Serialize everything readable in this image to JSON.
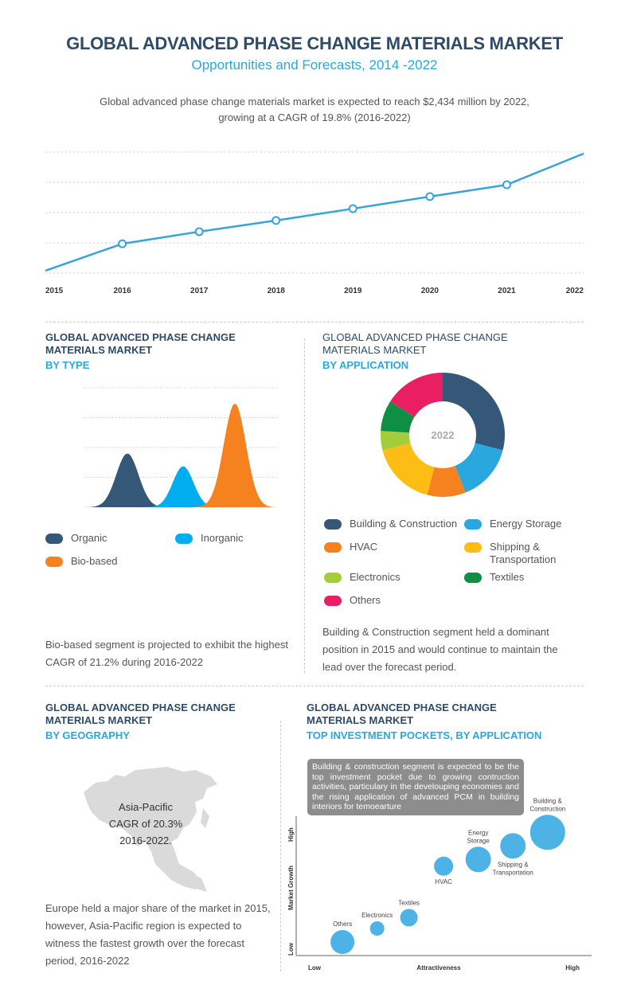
{
  "header": {
    "title": "GLOBAL ADVANCED PHASE CHANGE MATERIALS MARKET",
    "subtitle": "Opportunities and Forecasts, 2014 -2022",
    "intro_line1": "Global advanced phase change materials market is expected to reach $2,434 million by 2022,",
    "intro_line2": "growing at a CAGR of 19.8% (2016-2022)"
  },
  "colors": {
    "navy": "#2f4b68",
    "accent": "#2aa7dd",
    "line": "#36a3dc",
    "bubble": "#4db3e6"
  },
  "chart_data": [
    {
      "type": "line",
      "title": "",
      "xlabel": "",
      "ylabel": "",
      "categories": [
        "2015",
        "2016",
        "2017",
        "2018",
        "2019",
        "2020",
        "2021",
        "2022"
      ],
      "values": [
        0.08,
        0.97,
        1.37,
        1.74,
        2.13,
        2.53,
        2.92,
        3.95
      ],
      "markers": [
        false,
        true,
        true,
        true,
        true,
        true,
        true,
        false
      ],
      "ylim": [
        0,
        4
      ],
      "grid": "horizontal dotted",
      "color": "#36a3dc"
    },
    {
      "type": "area",
      "title_line1": "GLOBAL ADVANCED PHASE CHANGE",
      "title_line2": "MATERIALS MARKET",
      "subtitle": "BY TYPE",
      "series": [
        {
          "name": "Organic",
          "peak": 1.8,
          "color": "#355878"
        },
        {
          "name": "Inorganic",
          "peak": 1.37,
          "color": "#00aeef"
        },
        {
          "name": "Bio-based",
          "peak": 3.47,
          "color": "#f5821f"
        }
      ],
      "ylim": [
        0,
        4
      ],
      "grid": "horizontal dotted",
      "legend": "bottom",
      "note": "Bio-based segment is projected to exhibit the highest CAGR of 21.2% during 2016-2022"
    },
    {
      "type": "pie",
      "title_line1": "GLOBAL ADVANCED PHASE CHANGE",
      "title_line2": "MATERIALS MARKET",
      "subtitle": "BY APPLICATION",
      "center_label": "2022",
      "slices": [
        {
          "name": "Building & Construction",
          "value": 29,
          "color": "#355878"
        },
        {
          "name": "Energy Storage",
          "value": 15,
          "color": "#29a8e0"
        },
        {
          "name": "HVAC",
          "value": 10,
          "color": "#f5821f"
        },
        {
          "name": "Shipping & Transportation",
          "value": 17,
          "color": "#fdbd14"
        },
        {
          "name": "Electronics",
          "value": 5,
          "color": "#a3cd3a"
        },
        {
          "name": "Textiles",
          "value": 8,
          "color": "#0f8f43"
        },
        {
          "name": "Others",
          "value": 16,
          "color": "#e91e63"
        }
      ],
      "legend": "bottom",
      "note": "Building & Construction segment held a dominant position in 2015 and would continue to maintain the lead over the forecast period."
    },
    {
      "type": "scatter",
      "title_line1": "GLOBAL ADVANCED PHASE CHANGE",
      "title_line2": "MATERIALS MARKET",
      "subtitle": "TOP INVESTMENT POCKETS, BY APPLICATION",
      "xlabel": "Attractiveness",
      "ylabel": "Market Growth",
      "x_low": "Low",
      "x_high": "High",
      "y_low": "Low",
      "y_high": "High",
      "xlim": [
        0,
        10
      ],
      "ylim": [
        0,
        10
      ],
      "callout": "Building & construction segment is expected to be the top investment pocket due to growing contruction activities, particulary in the develouping economies and the rising application of advanced PCM in building interiors for temoearture",
      "points": [
        {
          "name": "Others",
          "x": 1.6,
          "y": 1.0,
          "size": 15,
          "label_pos": "above"
        },
        {
          "name": "Electronics",
          "x": 2.8,
          "y": 2.0,
          "size": 9,
          "label_pos": "above"
        },
        {
          "name": "Textiles",
          "x": 3.9,
          "y": 2.8,
          "size": 11,
          "label_pos": "above"
        },
        {
          "name": "HVAC",
          "x": 5.1,
          "y": 6.6,
          "size": 12,
          "label_pos": "below"
        },
        {
          "name": "Energy\nStorage",
          "x": 6.3,
          "y": 7.1,
          "size": 16,
          "label_pos": "above"
        },
        {
          "name": "Shipping &\nTransportation",
          "x": 7.5,
          "y": 8.1,
          "size": 16,
          "label_pos": "below"
        },
        {
          "name": "Building &\nConstruction",
          "x": 8.7,
          "y": 9.1,
          "size": 22,
          "label_pos": "above"
        }
      ]
    }
  ],
  "geography": {
    "title_line1": "GLOBAL ADVANCED PHASE CHANGE",
    "title_line2": "MATERIALS MARKET",
    "subtitle": "BY GEOGRAPHY",
    "map_line1": "Asia-Pacific",
    "map_line2": "CAGR of 20.3%",
    "map_line3": "2016-2022.",
    "note": "Europe held a major share of the market in 2015, however,  Asia-Pacific region is expected to witness the fastest growth over the forecast period, 2016-2022"
  }
}
